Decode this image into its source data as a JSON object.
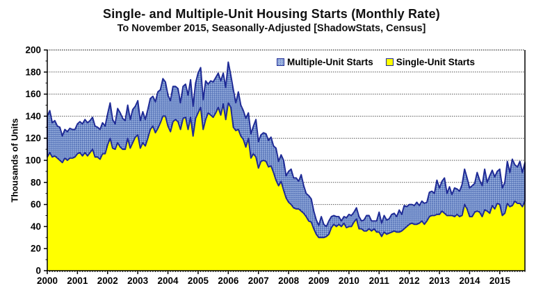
{
  "header": {
    "title": "Single- and Multiple-Unit Housing Starts (Monthly Rate)",
    "subtitle": "To November 2015, Seasonally-Adjusted [ShadowStats, Census]"
  },
  "chart_data": {
    "type": "area",
    "stacked": true,
    "title": "Single- and Multiple-Unit Housing Starts (Monthly Rate)",
    "subtitle": "To November 2015, Seasonally-Adjusted [ShadowStats, Census]",
    "xlabel": "",
    "ylabel": "Thousands of Units",
    "ylim": [
      0,
      200
    ],
    "y_ticks": [
      0,
      20,
      40,
      60,
      80,
      100,
      120,
      140,
      160,
      180,
      200
    ],
    "x_ticks": [
      2000,
      2001,
      2002,
      2003,
      2004,
      2005,
      2006,
      2007,
      2008,
      2009,
      2010,
      2011,
      2012,
      2013,
      2014,
      2015
    ],
    "x_start": "2000-01",
    "x_end": "2015-11",
    "frequency": "monthly",
    "grid": true,
    "legend_position": "top-inside",
    "legend": [
      {
        "label": "Multiple-Unit Starts",
        "swatch": "blue-hatched"
      },
      {
        "label": "Single-Unit Starts",
        "swatch": "yellow"
      }
    ],
    "colors": {
      "single": "#ffff00",
      "multi_base": "#9db4e0",
      "multi_check": "#4e6cb4",
      "line": "#1f2b96",
      "grid": "#555555",
      "axis": "#000000"
    },
    "series": [
      {
        "name": "Single-Unit Starts",
        "values": [
          103,
          107,
          103,
          104,
          102,
          100,
          98,
          102,
          100,
          102,
          102,
          103,
          106,
          107,
          104,
          107,
          104,
          107,
          110,
          103,
          103,
          101,
          106,
          106,
          114,
          120,
          111,
          110,
          116,
          112,
          110,
          110,
          120,
          111,
          116,
          121,
          123,
          111,
          116,
          113,
          120,
          128,
          131,
          125,
          129,
          134,
          140,
          140,
          131,
          126,
          135,
          137,
          135,
          128,
          138,
          139,
          128,
          139,
          122,
          138,
          143,
          148,
          128,
          137,
          143,
          141,
          139,
          143,
          148,
          141,
          151,
          137,
          152,
          148,
          130,
          127,
          128,
          122,
          119,
          112,
          120,
          102,
          106,
          103,
          93,
          99,
          100,
          99,
          94,
          95,
          89,
          82,
          77,
          81,
          73,
          66,
          62,
          60,
          57,
          56,
          56,
          54,
          52,
          49,
          45,
          44,
          38,
          33,
          30,
          30,
          30,
          31,
          33,
          39,
          42,
          40,
          42,
          40,
          43,
          39,
          40,
          40,
          44,
          47,
          38,
          38,
          36,
          36,
          38,
          36,
          38,
          35,
          35,
          31,
          35,
          33,
          34,
          35,
          36,
          35,
          35,
          36,
          38,
          40,
          42,
          43,
          42,
          42,
          43,
          45,
          42,
          45,
          49,
          50,
          50,
          51,
          51,
          54,
          52,
          50,
          50,
          50,
          49,
          51,
          49,
          50,
          60,
          56,
          49,
          49,
          53,
          54,
          53,
          49,
          55,
          54,
          52,
          59,
          56,
          61,
          60,
          50,
          52,
          61,
          58,
          59,
          63,
          61,
          61,
          58,
          63
        ]
      },
      {
        "name": "Multiple-Unit Starts",
        "values": [
          37,
          38,
          31,
          32,
          29,
          30,
          24,
          26,
          26,
          27,
          26,
          25,
          27,
          28,
          29,
          30,
          30,
          29,
          29,
          28,
          27,
          27,
          28,
          25,
          28,
          32,
          26,
          23,
          31,
          31,
          28,
          26,
          30,
          26,
          30,
          28,
          31,
          25,
          28,
          24,
          26,
          28,
          27,
          28,
          33,
          30,
          34,
          31,
          28,
          28,
          32,
          30,
          30,
          24,
          29,
          30,
          31,
          34,
          27,
          32,
          36,
          36,
          27,
          35,
          26,
          31,
          32,
          32,
          31,
          31,
          28,
          29,
          37,
          29,
          34,
          25,
          34,
          28,
          26,
          26,
          23,
          22,
          25,
          34,
          24,
          24,
          25,
          25,
          24,
          26,
          24,
          29,
          22,
          24,
          27,
          20,
          28,
          32,
          27,
          28,
          25,
          33,
          25,
          21,
          23,
          21,
          16,
          13,
          11,
          19,
          12,
          9,
          12,
          10,
          8,
          9,
          7,
          5,
          6,
          9,
          11,
          10,
          9,
          10,
          11,
          7,
          10,
          14,
          12,
          9,
          7,
          10,
          18,
          12,
          15,
          13,
          13,
          16,
          16,
          14,
          20,
          15,
          21,
          18,
          18,
          17,
          17,
          20,
          16,
          18,
          19,
          17,
          22,
          22,
          20,
          31,
          24,
          27,
          32,
          20,
          26,
          19,
          26,
          23,
          23,
          28,
          32,
          28,
          26,
          28,
          26,
          35,
          29,
          28,
          37,
          26,
          34,
          32,
          29,
          29,
          32,
          25,
          28,
          38,
          31,
          42,
          33,
          33,
          38,
          31,
          35
        ]
      }
    ]
  }
}
